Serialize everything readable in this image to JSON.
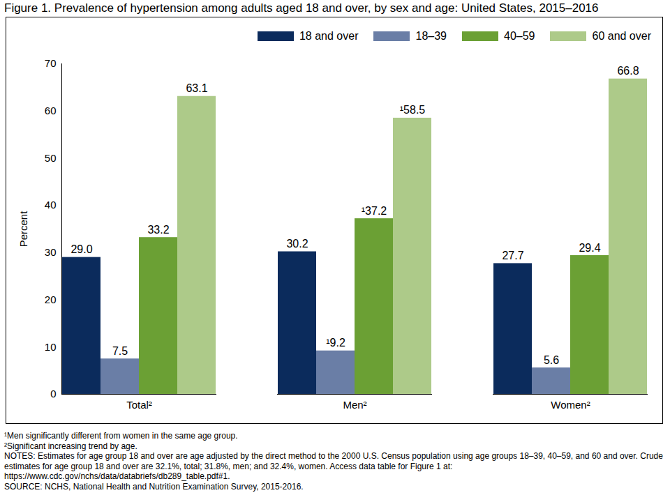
{
  "chart_data": {
    "type": "bar",
    "title": "Figure 1. Prevalence of hypertension among adults aged 18 and over, by sex and age: United States, 2015–2016",
    "y_label": "Percent",
    "categories": [
      "Total²",
      "Men²",
      "Women²"
    ],
    "series": [
      {
        "name": "18 and over",
        "color": "#0b2b5c",
        "values": [
          29.0,
          30.2,
          27.7
        ],
        "value_labels": [
          "29.0",
          "30.2",
          "27.7"
        ]
      },
      {
        "name": "18–39",
        "color": "#6a7ea6",
        "values": [
          7.5,
          9.2,
          5.6
        ],
        "value_labels": [
          "7.5",
          "¹9.2",
          "5.6"
        ]
      },
      {
        "name": "40–59",
        "color": "#6ba034",
        "values": [
          33.2,
          37.2,
          29.4
        ],
        "value_labels": [
          "33.2",
          "¹37.2",
          "29.4"
        ]
      },
      {
        "name": "60 and over",
        "color": "#adca89",
        "values": [
          63.1,
          58.5,
          66.8
        ],
        "value_labels": [
          "63.1",
          "¹58.5",
          "66.8"
        ]
      }
    ],
    "ylim": [
      0,
      70
    ],
    "yticks": [
      0,
      10,
      20,
      30,
      40,
      50,
      60,
      70
    ],
    "grid": false,
    "legend": "top",
    "data_labels": true,
    "footnotes": [
      "¹Men significantly different from women in the same age group.",
      "²Significant increasing trend by age.",
      "NOTES: Estimates for age group 18 and over are age adjusted by the direct method to the 2000 U.S. Census population using age groups 18–39, 40–59, and 60 and over. Crude estimates for age group 18 and over are 32.1%, total; 31.8%, men; and 32.4%, women. Access data table for Figure 1 at: https://www.cdc.gov/nchs/data/databriefs/db289_table.pdf#1.",
      "SOURCE: NCHS, National Health and Nutrition Examination Survey, 2015-2016."
    ]
  }
}
